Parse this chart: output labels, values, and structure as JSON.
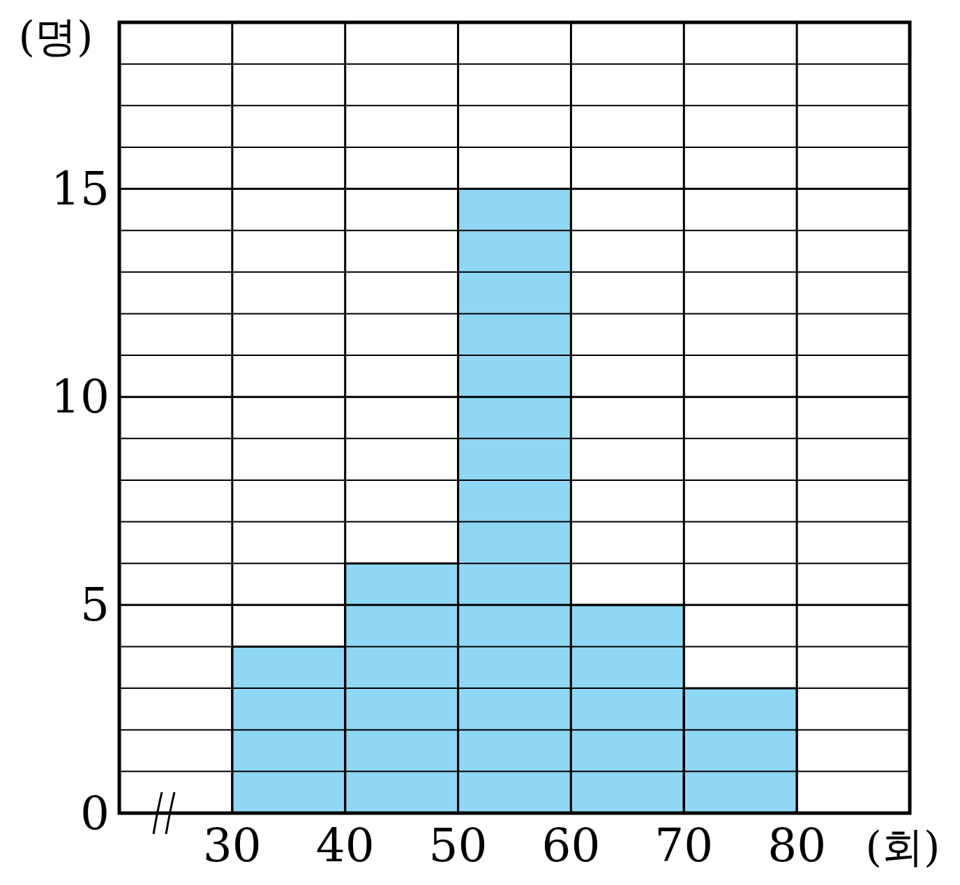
{
  "chart_data": {
    "type": "histogram",
    "xlabel": "(회)",
    "ylabel": "(명)",
    "bins": [
      30,
      40,
      50,
      60,
      70,
      80
    ],
    "values": [
      4,
      6,
      15,
      5,
      3
    ],
    "color": "#8fd8f5",
    "xlim": [
      20,
      90
    ],
    "xticks": [
      30,
      40,
      50,
      60,
      70,
      80
    ],
    "ylim": [
      0,
      19
    ],
    "yticks": [
      0,
      {
        "value": 1,
        "label": null
      },
      {
        "value": 2,
        "label": null
      },
      {
        "value": 3,
        "label": null
      },
      {
        "value": 4,
        "label": null
      },
      5,
      {
        "value": 6,
        "label": null
      },
      {
        "value": 7,
        "label": null
      },
      {
        "value": 8,
        "label": null
      },
      {
        "value": 9,
        "label": null
      },
      10,
      {
        "value": 11,
        "label": null
      },
      {
        "value": 12,
        "label": null
      },
      {
        "value": 13,
        "label": null
      },
      {
        "value": 14,
        "label": null
      },
      15,
      {
        "value": 16,
        "label": null
      },
      {
        "value": 17,
        "label": null
      },
      {
        "value": 18,
        "label": null
      },
      {
        "value": 19,
        "label": null
      }
    ],
    "grid": true
  }
}
